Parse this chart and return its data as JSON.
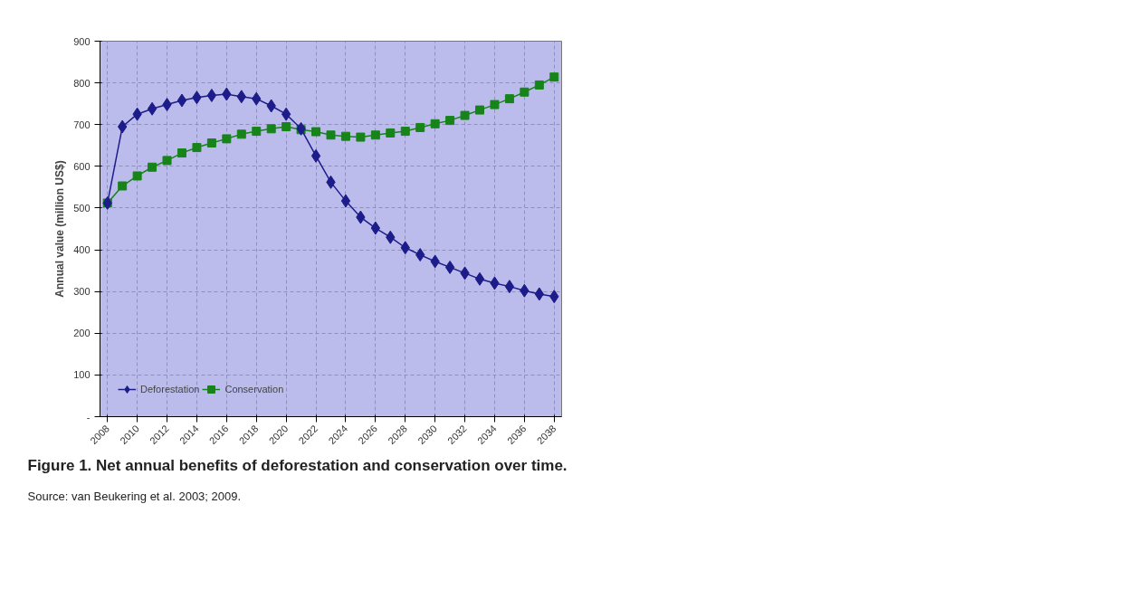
{
  "chart_data": {
    "type": "line",
    "title": "Figure 1. Net annual benefits of deforestation and conservation over time.",
    "ylabel": "Annual value (million US$)",
    "annotations": [
      "Source: van Beukering et al. 2003; 2009."
    ],
    "x": [
      2008,
      2009,
      2010,
      2011,
      2012,
      2013,
      2014,
      2015,
      2016,
      2017,
      2018,
      2019,
      2020,
      2021,
      2022,
      2023,
      2024,
      2025,
      2026,
      2027,
      2028,
      2029,
      2030,
      2031,
      2032,
      2033,
      2034,
      2035,
      2036,
      2037,
      2038
    ],
    "series": [
      {
        "name": "Deforestation",
        "color": "#1c1c8a",
        "marker": "diamond",
        "values": [
          512,
          695,
          725,
          738,
          748,
          758,
          765,
          770,
          773,
          767,
          762,
          745,
          725,
          690,
          625,
          562,
          517,
          478,
          452,
          430,
          405,
          388,
          372,
          358,
          344,
          330,
          320,
          312,
          302,
          294,
          288
        ]
      },
      {
        "name": "Conservation",
        "color": "#17841a",
        "marker": "square",
        "values": [
          512,
          553,
          577,
          598,
          614,
          632,
          645,
          656,
          666,
          677,
          684,
          690,
          695,
          688,
          683,
          675,
          672,
          670,
          675,
          680,
          684,
          693,
          702,
          710,
          722,
          735,
          748,
          762,
          778,
          795,
          814
        ]
      }
    ],
    "xlim": [
      2007.5,
      2038.5
    ],
    "xticks": [
      2008,
      2010,
      2012,
      2014,
      2016,
      2018,
      2020,
      2022,
      2024,
      2026,
      2028,
      2030,
      2032,
      2034,
      2036,
      2038
    ],
    "ylim": [
      0,
      900
    ],
    "yticks": [
      {
        "value": 0,
        "label": "-"
      },
      100,
      200,
      300,
      400,
      500,
      600,
      700,
      800,
      900
    ],
    "grid": true,
    "legend": "bottom left",
    "line_style": "solid"
  }
}
